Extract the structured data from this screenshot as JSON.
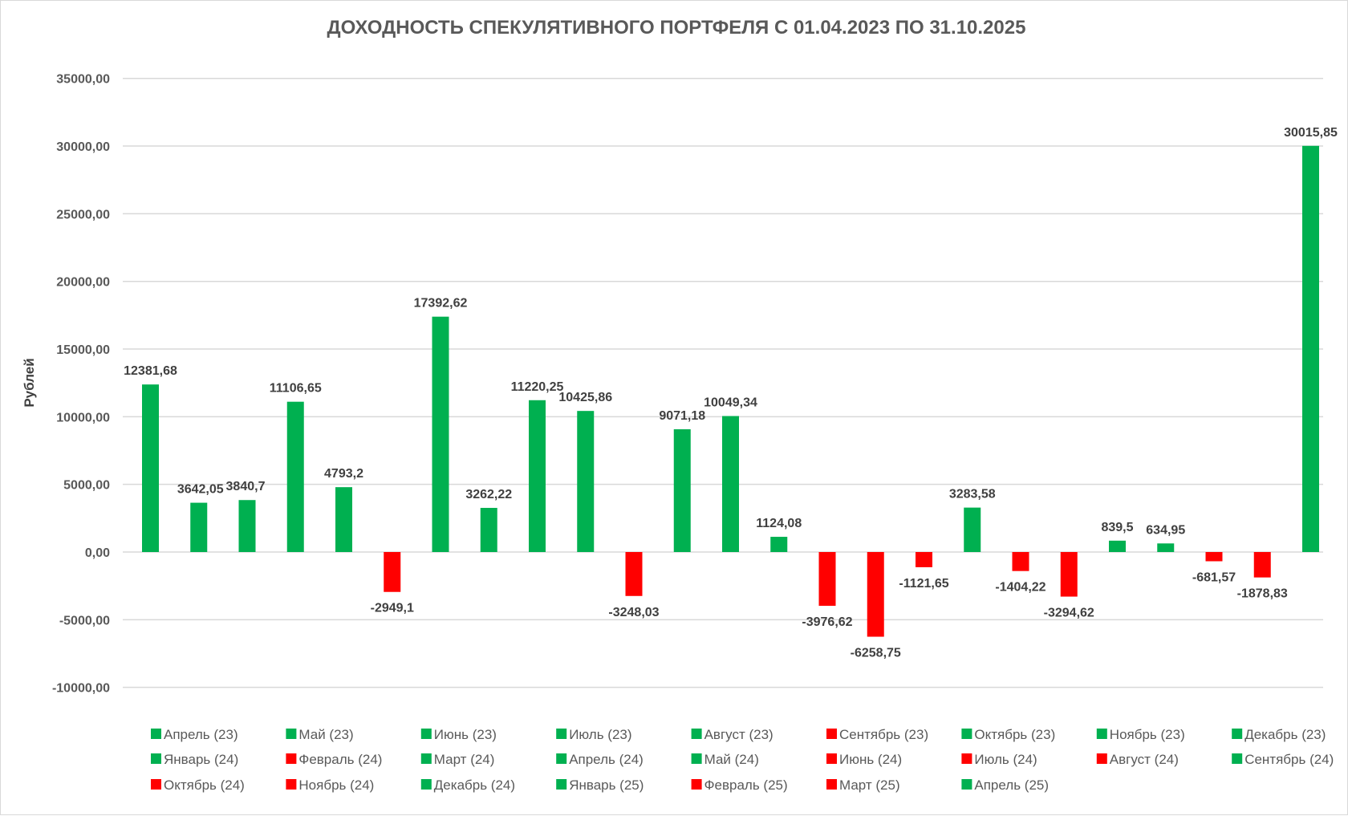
{
  "chart_data": {
    "type": "bar",
    "title": "ДОХОДНОСТЬ СПЕКУЛЯТИВНОГО ПОРТФЕЛЯ С 01.04.2023 ПО 31.10.2025",
    "ylabel": "Рублей",
    "xlabel": "",
    "ylim": [
      -10000,
      35000
    ],
    "yticks": [
      35000,
      30000,
      25000,
      20000,
      15000,
      10000,
      5000,
      0,
      -5000,
      -10000
    ],
    "ytick_labels": [
      "35000,00",
      "30000,00",
      "25000,00",
      "20000,00",
      "15000,00",
      "10000,00",
      "5000,00",
      "0,00",
      "-5000,00",
      "-10000,00"
    ],
    "grid": true,
    "legend_position": "bottom",
    "colors": {
      "positive": "#00b050",
      "negative": "#ff0000"
    },
    "categories": [
      "Апрель (23)",
      "Май (23)",
      "Июнь (23)",
      "Июль (23)",
      "Август (23)",
      "Сентябрь (23)",
      "Октябрь (23)",
      "Ноябрь (23)",
      "Декабрь (23)",
      "Январь (24)",
      "Февраль (24)",
      "Март (24)",
      "Апрель (24)",
      "Май (24)",
      "Июнь (24)",
      "Июль (24)",
      "Август (24)",
      "Сентябрь (24)",
      "Октябрь (24)",
      "Ноябрь (24)",
      "Декабрь (24)",
      "Январь (25)",
      "Февраль (25)",
      "Март (25)",
      "Апрель (25)"
    ],
    "values": [
      12381.68,
      3642.05,
      3840.7,
      11106.65,
      4793.2,
      -2949.1,
      17392.62,
      3262.22,
      11220.25,
      10425.86,
      -3248.03,
      9071.18,
      10049.34,
      1124.08,
      -3976.62,
      -6258.75,
      -1121.65,
      3283.58,
      -1404.22,
      -3294.62,
      839.5,
      634.95,
      -681.57,
      -1878.83,
      30015.85
    ],
    "value_labels": [
      "12381,68",
      "3642,05",
      "3840,7",
      "11106,65",
      "4793,2",
      "-2949,1",
      "17392,62",
      "3262,22",
      "11220,25",
      "10425,86",
      "-3248,03",
      "9071,18",
      "10049,34",
      "1124,08",
      "-3976,62",
      "-6258,75",
      "-1121,65",
      "3283,58",
      "-1404,22",
      "-3294,62",
      "839,5",
      "634,95",
      "-681,57",
      "-1878,83",
      "30015,85"
    ]
  }
}
